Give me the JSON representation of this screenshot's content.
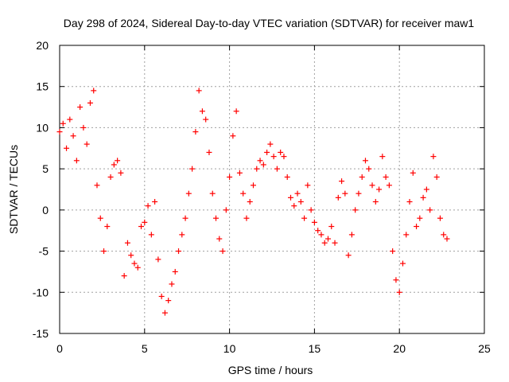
{
  "chart_data": {
    "type": "scatter",
    "title": "Day 298 of 2024, Sidereal Day-to-day VTEC variation (SDTVAR) for receiver maw1",
    "xlabel": "GPS time / hours",
    "ylabel": "SDTVAR / TECUs",
    "xlim": [
      0,
      25
    ],
    "ylim": [
      -15,
      20
    ],
    "xticks": [
      0,
      5,
      10,
      15,
      20,
      25
    ],
    "yticks": [
      -15,
      -10,
      -5,
      0,
      5,
      10,
      15,
      20
    ],
    "grid": true,
    "marker": "+",
    "color": "#ff0000",
    "series": [
      {
        "name": "SDTVAR",
        "x": [
          0.0,
          0.2,
          0.4,
          0.6,
          0.8,
          1.0,
          1.2,
          1.4,
          1.6,
          1.8,
          2.0,
          2.2,
          2.4,
          2.6,
          2.8,
          3.0,
          3.2,
          3.4,
          3.6,
          3.8,
          4.0,
          4.2,
          4.4,
          4.6,
          4.8,
          5.0,
          5.2,
          5.4,
          5.6,
          5.8,
          6.0,
          6.2,
          6.4,
          6.6,
          6.8,
          7.0,
          7.2,
          7.4,
          7.6,
          7.8,
          8.0,
          8.2,
          8.4,
          8.6,
          8.8,
          9.0,
          9.2,
          9.4,
          9.6,
          9.8,
          10.0,
          10.2,
          10.4,
          10.6,
          10.8,
          11.0,
          11.2,
          11.4,
          11.6,
          11.8,
          12.0,
          12.2,
          12.4,
          12.6,
          12.8,
          13.0,
          13.2,
          13.4,
          13.6,
          13.8,
          14.0,
          14.2,
          14.4,
          14.6,
          14.8,
          15.0,
          15.2,
          15.4,
          15.6,
          15.8,
          16.0,
          16.2,
          16.4,
          16.6,
          16.8,
          17.0,
          17.2,
          17.4,
          17.6,
          17.8,
          18.0,
          18.2,
          18.4,
          18.6,
          18.8,
          19.0,
          19.2,
          19.4,
          19.6,
          19.8,
          20.0,
          20.2,
          20.4,
          20.6,
          20.8,
          21.0,
          21.2,
          21.4,
          21.6,
          21.8,
          22.0,
          22.2,
          22.4,
          22.6,
          22.8
        ],
        "y": [
          9.5,
          10.5,
          7.5,
          11.0,
          9.0,
          6.0,
          12.5,
          10.0,
          8.0,
          13.0,
          14.5,
          3.0,
          -1.0,
          -5.0,
          -2.0,
          4.0,
          5.5,
          6.0,
          4.5,
          -8.0,
          -4.0,
          -5.5,
          -6.5,
          -7.0,
          -2.0,
          -1.5,
          0.5,
          -3.0,
          1.0,
          -6.0,
          -10.5,
          -12.5,
          -11.0,
          -9.0,
          -7.5,
          -5.0,
          -3.0,
          -1.0,
          2.0,
          5.0,
          9.5,
          14.5,
          12.0,
          11.0,
          7.0,
          2.0,
          -1.0,
          -3.5,
          -5.0,
          0.0,
          4.0,
          9.0,
          12.0,
          4.5,
          2.0,
          -1.0,
          1.0,
          3.0,
          5.0,
          6.0,
          5.5,
          7.0,
          8.0,
          6.5,
          5.0,
          7.0,
          6.5,
          4.0,
          1.5,
          0.5,
          2.0,
          1.0,
          -1.0,
          3.0,
          0.0,
          -1.5,
          -2.5,
          -3.0,
          -4.0,
          -3.5,
          -2.0,
          -4.0,
          1.5,
          3.5,
          2.0,
          -5.5,
          -3.0,
          0.0,
          2.0,
          4.0,
          6.0,
          5.0,
          3.0,
          1.0,
          2.5,
          6.5,
          4.0,
          3.0,
          -5.0,
          -8.5,
          -10.0,
          -6.5,
          -3.0,
          1.0,
          4.5,
          -2.0,
          -1.0,
          1.5,
          2.5,
          0.0,
          6.5,
          4.0,
          -1.0,
          -3.0,
          -3.5
        ]
      }
    ]
  }
}
